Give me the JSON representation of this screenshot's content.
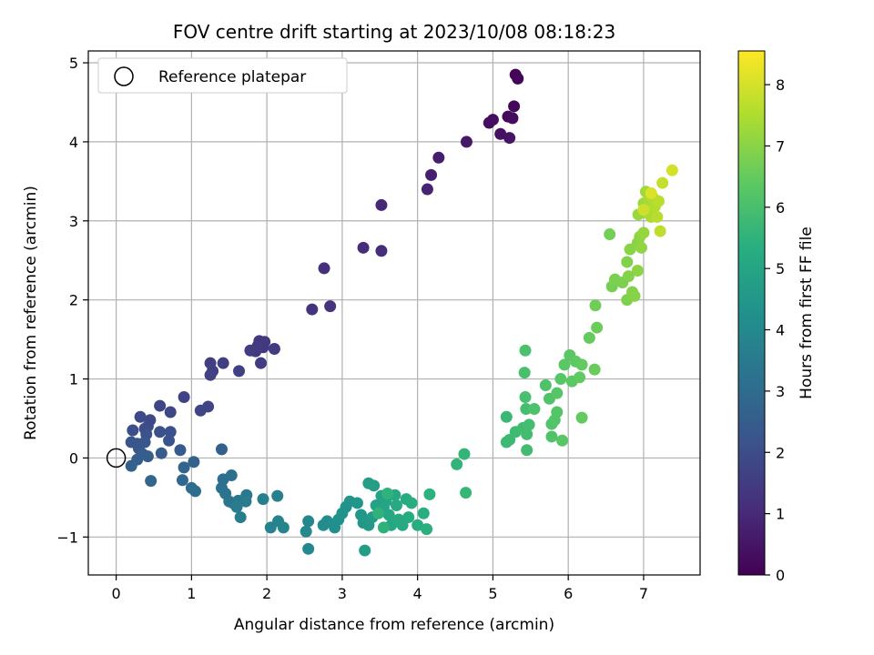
{
  "chart_data": {
    "type": "scatter",
    "title": "FOV centre drift starting at 2023/10/08 08:18:23",
    "xlabel": "Angular distance from reference (arcmin)",
    "ylabel": "Rotation from reference (arcmin)",
    "xlim": [
      -0.37,
      7.75
    ],
    "ylim": [
      -1.48,
      5.15
    ],
    "xticks": [
      0,
      1,
      2,
      3,
      4,
      5,
      6,
      7
    ],
    "yticks": [
      -1,
      0,
      1,
      2,
      3,
      4,
      5
    ],
    "grid": true,
    "colormap": "viridis",
    "colorbar": {
      "label": "Hours from first FF file",
      "min": 0,
      "max": 8.55,
      "ticks": [
        0,
        1,
        2,
        3,
        4,
        5,
        6,
        7,
        8
      ]
    },
    "legend": {
      "placement": "top-left",
      "entries": [
        {
          "label": "Reference platepar",
          "marker": "open-circle"
        }
      ]
    },
    "reference_point": {
      "x": 0,
      "y": 0
    },
    "points": [
      [
        5.3,
        4.85,
        0.05
      ],
      [
        5.33,
        4.8,
        0.1
      ],
      [
        5.28,
        4.45,
        0.15
      ],
      [
        5.2,
        4.32,
        0.2
      ],
      [
        5.26,
        4.3,
        0.25
      ],
      [
        5.0,
        4.28,
        0.3
      ],
      [
        4.95,
        4.24,
        0.35
      ],
      [
        5.1,
        4.1,
        0.4
      ],
      [
        5.22,
        4.05,
        0.45
      ],
      [
        4.65,
        4.0,
        0.55
      ],
      [
        4.28,
        3.8,
        0.65
      ],
      [
        4.18,
        3.58,
        0.75
      ],
      [
        4.13,
        3.4,
        0.85
      ],
      [
        3.52,
        3.2,
        0.95
      ],
      [
        3.28,
        2.66,
        1.05
      ],
      [
        3.52,
        2.62,
        1.1
      ],
      [
        2.76,
        2.4,
        1.15
      ],
      [
        2.84,
        1.92,
        1.2
      ],
      [
        2.6,
        1.88,
        1.25
      ],
      [
        1.9,
        1.48,
        1.35
      ],
      [
        1.97,
        1.47,
        1.38
      ],
      [
        1.95,
        1.4,
        1.4
      ],
      [
        1.88,
        1.42,
        1.42
      ],
      [
        1.85,
        1.35,
        1.45
      ],
      [
        2.1,
        1.38,
        1.48
      ],
      [
        1.78,
        1.36,
        1.5
      ],
      [
        1.92,
        1.2,
        1.52
      ],
      [
        1.25,
        1.2,
        1.55
      ],
      [
        1.42,
        1.2,
        1.58
      ],
      [
        1.28,
        1.1,
        1.6
      ],
      [
        1.63,
        1.1,
        1.62
      ],
      [
        1.25,
        1.05,
        1.64
      ],
      [
        0.9,
        0.77,
        1.7
      ],
      [
        1.22,
        0.65,
        1.75
      ],
      [
        1.12,
        0.6,
        1.78
      ],
      [
        0.58,
        0.66,
        1.8
      ],
      [
        0.72,
        0.58,
        1.85
      ],
      [
        0.32,
        0.52,
        1.88
      ],
      [
        0.45,
        0.48,
        1.9
      ],
      [
        0.42,
        0.4,
        1.95
      ],
      [
        0.38,
        0.37,
        2.0
      ],
      [
        0.22,
        0.35,
        2.05
      ],
      [
        0.58,
        0.33,
        2.1
      ],
      [
        0.72,
        0.33,
        2.12
      ],
      [
        0.4,
        0.3,
        2.15
      ],
      [
        0.7,
        0.22,
        2.2
      ],
      [
        0.2,
        0.2,
        2.25
      ],
      [
        0.28,
        0.18,
        2.28
      ],
      [
        0.38,
        0.2,
        2.3
      ],
      [
        0.3,
        0.12,
        2.35
      ],
      [
        0.85,
        0.1,
        2.4
      ],
      [
        0.6,
        0.06,
        2.45
      ],
      [
        0.35,
        0.05,
        2.48
      ],
      [
        0.42,
        0.02,
        2.5
      ],
      [
        0.28,
        -0.02,
        2.55
      ],
      [
        0.2,
        -0.1,
        2.6
      ],
      [
        1.4,
        0.11,
        2.65
      ],
      [
        1.03,
        -0.05,
        2.7
      ],
      [
        0.9,
        -0.12,
        2.75
      ],
      [
        0.46,
        -0.29,
        2.8
      ],
      [
        0.88,
        -0.28,
        2.9
      ],
      [
        1.0,
        -0.38,
        3.0
      ],
      [
        1.05,
        -0.42,
        3.05
      ],
      [
        1.42,
        -0.27,
        3.1
      ],
      [
        1.53,
        -0.22,
        3.15
      ],
      [
        1.4,
        -0.38,
        3.2
      ],
      [
        1.45,
        -0.45,
        3.25
      ],
      [
        1.5,
        -0.55,
        3.3
      ],
      [
        1.55,
        -0.57,
        3.35
      ],
      [
        1.62,
        -0.54,
        3.4
      ],
      [
        1.73,
        -0.47,
        3.45
      ],
      [
        1.72,
        -0.55,
        3.5
      ],
      [
        1.6,
        -0.62,
        3.55
      ],
      [
        1.65,
        -0.75,
        3.6
      ],
      [
        1.95,
        -0.52,
        3.65
      ],
      [
        2.14,
        -0.48,
        3.7
      ],
      [
        2.05,
        -0.88,
        3.75
      ],
      [
        2.15,
        -0.8,
        3.8
      ],
      [
        2.22,
        -0.88,
        3.85
      ],
      [
        2.55,
        -0.8,
        3.9
      ],
      [
        2.52,
        -0.93,
        3.95
      ],
      [
        2.55,
        -1.15,
        4.0
      ],
      [
        2.75,
        -0.85,
        4.1
      ],
      [
        2.8,
        -0.8,
        4.15
      ],
      [
        2.9,
        -0.88,
        4.2
      ],
      [
        2.95,
        -0.78,
        4.25
      ],
      [
        3.0,
        -0.7,
        4.3
      ],
      [
        3.05,
        -0.62,
        4.35
      ],
      [
        3.1,
        -0.55,
        4.4
      ],
      [
        3.2,
        -0.57,
        4.45
      ],
      [
        3.25,
        -0.72,
        4.5
      ],
      [
        3.28,
        -0.82,
        4.55
      ],
      [
        3.35,
        -0.85,
        4.6
      ],
      [
        3.4,
        -0.75,
        4.65
      ],
      [
        3.3,
        -1.17,
        4.7
      ],
      [
        3.35,
        -0.32,
        4.75
      ],
      [
        3.42,
        -0.35,
        4.8
      ],
      [
        3.45,
        -0.6,
        4.85
      ],
      [
        3.52,
        -0.48,
        4.9
      ],
      [
        3.55,
        -0.62,
        4.95
      ],
      [
        3.58,
        -0.55,
        5.0
      ],
      [
        3.62,
        -0.72,
        5.05
      ],
      [
        3.65,
        -0.85,
        5.1
      ],
      [
        3.7,
        -0.47,
        5.12
      ],
      [
        3.72,
        -0.6,
        5.15
      ],
      [
        3.75,
        -0.78,
        5.18
      ],
      [
        3.8,
        -0.85,
        5.2
      ],
      [
        3.85,
        -0.52,
        5.22
      ],
      [
        3.88,
        -0.75,
        5.25
      ],
      [
        3.92,
        -0.57,
        5.28
      ],
      [
        4.0,
        -0.85,
        5.3
      ],
      [
        4.08,
        -0.7,
        5.35
      ],
      [
        4.12,
        -0.9,
        5.4
      ],
      [
        4.16,
        -0.46,
        5.45
      ],
      [
        3.55,
        -0.88,
        5.48
      ],
      [
        3.6,
        -0.45,
        5.5
      ],
      [
        3.48,
        -0.7,
        5.52
      ],
      [
        4.52,
        -0.08,
        5.55
      ],
      [
        4.62,
        0.05,
        5.6
      ],
      [
        4.64,
        -0.44,
        5.65
      ],
      [
        5.18,
        0.52,
        5.7
      ],
      [
        5.18,
        0.2,
        5.75
      ],
      [
        5.22,
        0.23,
        5.78
      ],
      [
        5.3,
        0.33,
        5.8
      ],
      [
        5.4,
        0.38,
        5.85
      ],
      [
        5.45,
        0.1,
        5.88
      ],
      [
        5.45,
        0.3,
        5.9
      ],
      [
        5.48,
        0.42,
        5.92
      ],
      [
        5.44,
        0.62,
        5.95
      ],
      [
        5.43,
        0.77,
        5.98
      ],
      [
        5.42,
        1.08,
        6.0
      ],
      [
        5.43,
        1.36,
        6.05
      ],
      [
        5.55,
        0.62,
        6.08
      ],
      [
        5.7,
        0.92,
        6.1
      ],
      [
        5.75,
        0.75,
        6.12
      ],
      [
        5.78,
        0.27,
        6.15
      ],
      [
        5.78,
        0.43,
        6.18
      ],
      [
        5.82,
        0.48,
        6.2
      ],
      [
        5.85,
        0.58,
        6.22
      ],
      [
        5.85,
        0.82,
        6.25
      ],
      [
        5.9,
        1.0,
        6.28
      ],
      [
        5.92,
        0.22,
        6.3
      ],
      [
        5.95,
        1.18,
        6.32
      ],
      [
        6.02,
        1.3,
        6.35
      ],
      [
        6.05,
        0.97,
        6.38
      ],
      [
        6.1,
        1.22,
        6.4
      ],
      [
        6.15,
        1.02,
        6.42
      ],
      [
        6.18,
        1.18,
        6.45
      ],
      [
        6.18,
        0.51,
        6.48
      ],
      [
        6.28,
        1.52,
        6.5
      ],
      [
        6.35,
        1.12,
        6.55
      ],
      [
        6.38,
        1.65,
        6.6
      ],
      [
        6.36,
        1.93,
        6.65
      ],
      [
        6.55,
        2.83,
        6.7
      ],
      [
        6.58,
        2.17,
        6.75
      ],
      [
        6.62,
        2.26,
        6.78
      ],
      [
        6.72,
        2.22,
        6.8
      ],
      [
        6.78,
        2.0,
        6.85
      ],
      [
        6.78,
        2.48,
        6.88
      ],
      [
        6.8,
        2.3,
        6.9
      ],
      [
        6.85,
        2.1,
        6.92
      ],
      [
        6.88,
        2.05,
        6.95
      ],
      [
        6.82,
        2.64,
        6.98
      ],
      [
        6.92,
        2.72,
        7.0
      ],
      [
        6.92,
        2.37,
        7.05
      ],
      [
        6.95,
        2.8,
        7.08
      ],
      [
        6.97,
        2.66,
        7.1
      ],
      [
        7.0,
        2.85,
        7.15
      ],
      [
        6.93,
        3.08,
        7.2
      ],
      [
        7.0,
        3.22,
        7.25
      ],
      [
        7.03,
        3.37,
        7.3
      ],
      [
        7.05,
        3.1,
        7.35
      ],
      [
        7.08,
        3.25,
        7.4
      ],
      [
        7.1,
        3.05,
        7.45
      ],
      [
        7.12,
        3.3,
        7.5
      ],
      [
        7.15,
        3.18,
        7.55
      ],
      [
        7.18,
        3.05,
        7.6
      ],
      [
        7.2,
        3.25,
        7.65
      ],
      [
        7.22,
        2.87,
        7.7
      ],
      [
        7.25,
        3.48,
        7.8
      ],
      [
        7.38,
        3.64,
        8.0
      ],
      [
        7.0,
        3.14,
        7.9
      ],
      [
        7.1,
        3.35,
        8.1
      ]
    ]
  }
}
